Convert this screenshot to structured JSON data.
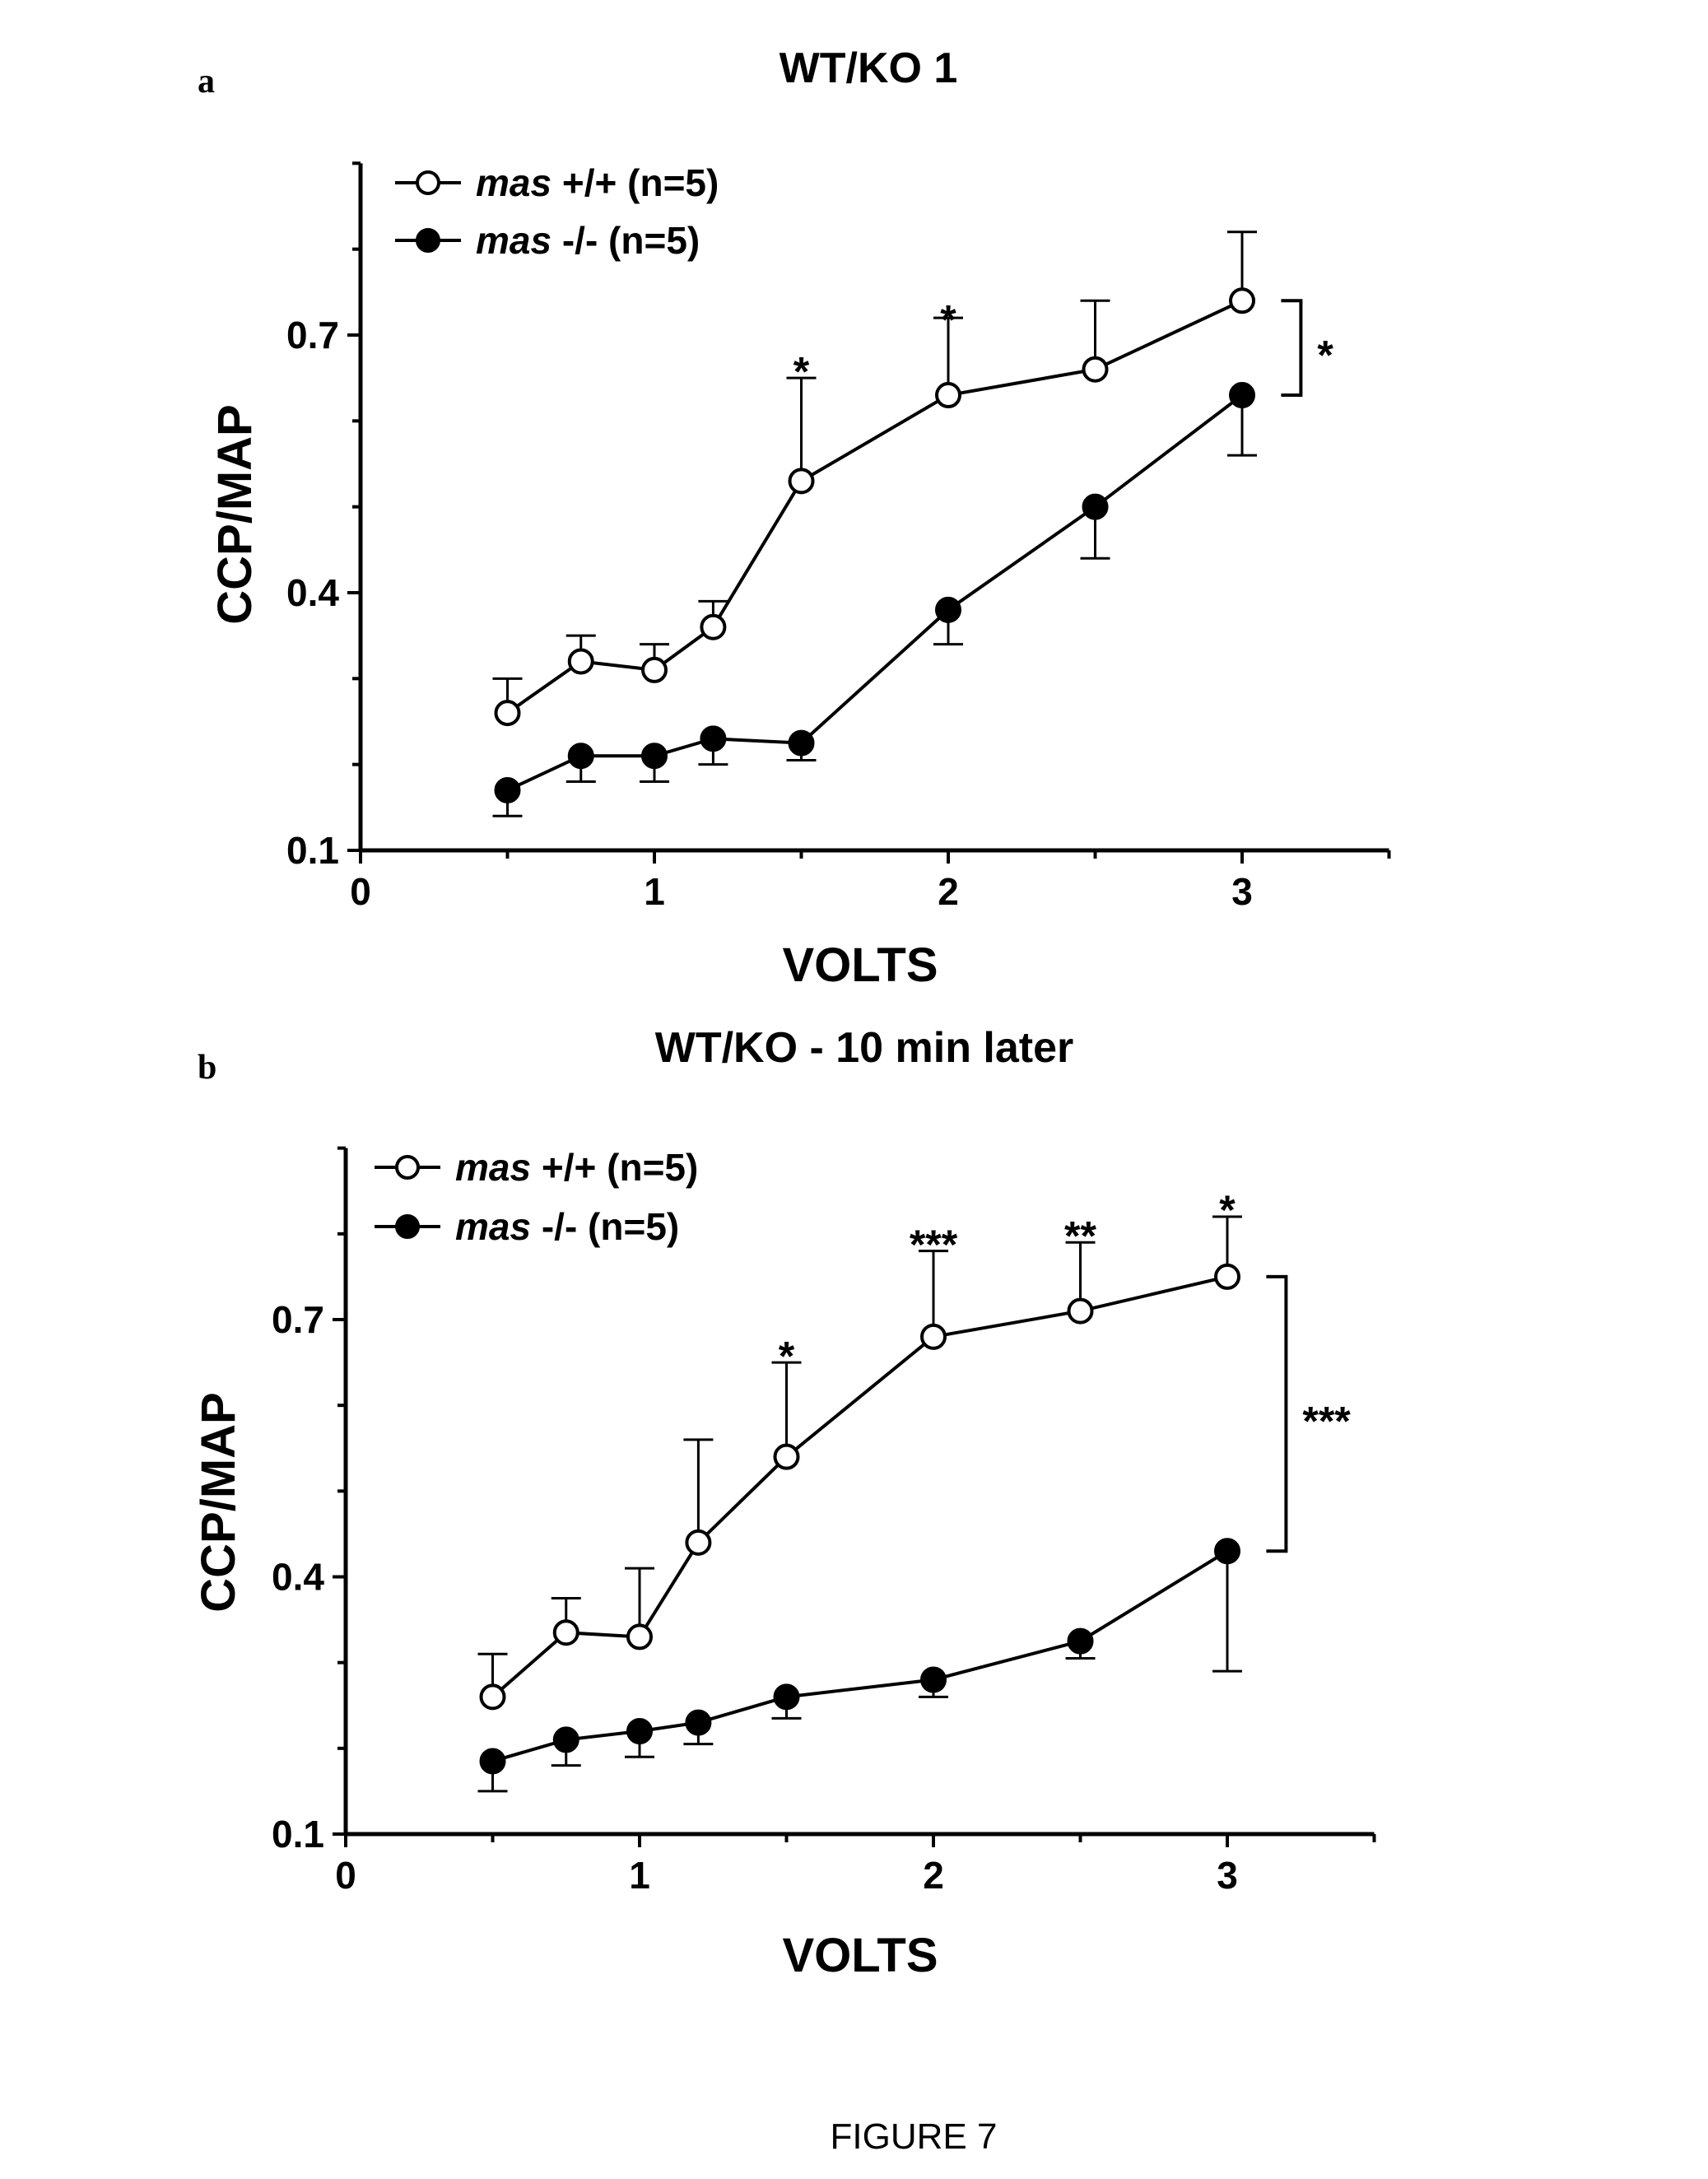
{
  "figure_caption": "FIGURE 7",
  "chart_data": [
    {
      "type": "line",
      "panel": "a",
      "title": "WT/KO 1",
      "xlabel": "VOLTS",
      "ylabel": "CCP/MAP",
      "xlim": [
        0,
        3.5
      ],
      "ylim": [
        0.1,
        0.9
      ],
      "xticks": [
        0,
        1,
        2,
        3
      ],
      "yticks": [
        0.1,
        0.4,
        0.7
      ],
      "x": [
        0.5,
        0.75,
        1.0,
        1.2,
        1.5,
        2.0,
        2.5,
        3.0
      ],
      "series": [
        {
          "name": "mas +/+ (n=5)",
          "name_prefix": "mas",
          "name_suffix": "+/+ (n=5)",
          "marker": "open",
          "values": [
            0.26,
            0.32,
            0.31,
            0.36,
            0.53,
            0.63,
            0.66,
            0.74
          ],
          "errors": [
            0.04,
            0.03,
            0.03,
            0.03,
            0.12,
            0.09,
            0.08,
            0.08
          ]
        },
        {
          "name": "mas -/- (n=5)",
          "name_prefix": "mas",
          "name_suffix": "-/- (n=5)",
          "marker": "filled",
          "values": [
            0.17,
            0.21,
            0.21,
            0.23,
            0.225,
            0.38,
            0.5,
            0.63
          ],
          "errors": [
            0.03,
            0.03,
            0.03,
            0.03,
            0.02,
            0.04,
            0.06,
            0.07
          ]
        }
      ],
      "annotations": [
        {
          "x": 1.5,
          "y": 0.67,
          "text": "*"
        },
        {
          "x": 2.0,
          "y": 0.73,
          "text": "*"
        }
      ],
      "bracket": {
        "x": 3.2,
        "y_top": 0.74,
        "y_bottom": 0.63,
        "text": "*"
      }
    },
    {
      "type": "line",
      "panel": "b",
      "title": "WT/KO - 10 min later",
      "xlabel": "VOLTS",
      "ylabel": "CCP/MAP",
      "xlim": [
        0,
        3.5
      ],
      "ylim": [
        0.1,
        0.9
      ],
      "xticks": [
        0,
        1,
        2,
        3
      ],
      "yticks": [
        0.1,
        0.4,
        0.7
      ],
      "x": [
        0.5,
        0.75,
        1.0,
        1.2,
        1.5,
        2.0,
        2.5,
        3.0
      ],
      "series": [
        {
          "name": "mas +/+ (n=5)",
          "name_prefix": "mas",
          "name_suffix": "+/+ (n=5)",
          "marker": "open",
          "values": [
            0.26,
            0.335,
            0.33,
            0.44,
            0.54,
            0.68,
            0.71,
            0.75
          ],
          "errors": [
            0.05,
            0.04,
            0.08,
            0.12,
            0.11,
            0.1,
            0.08,
            0.07
          ]
        },
        {
          "name": "mas -/- (n=5)",
          "name_prefix": "mas",
          "name_suffix": "-/- (n=5)",
          "marker": "filled",
          "values": [
            0.185,
            0.21,
            0.22,
            0.23,
            0.26,
            0.28,
            0.325,
            0.43
          ],
          "errors": [
            0.035,
            0.03,
            0.03,
            0.025,
            0.025,
            0.02,
            0.02,
            0.14
          ]
        }
      ],
      "annotations": [
        {
          "x": 1.5,
          "y": 0.67,
          "text": "*"
        },
        {
          "x": 2.0,
          "y": 0.8,
          "text": "***"
        },
        {
          "x": 2.5,
          "y": 0.81,
          "text": "**"
        },
        {
          "x": 3.0,
          "y": 0.84,
          "text": "*"
        }
      ],
      "bracket": {
        "x": 3.2,
        "y_top": 0.75,
        "y_bottom": 0.43,
        "text": "***"
      }
    }
  ]
}
